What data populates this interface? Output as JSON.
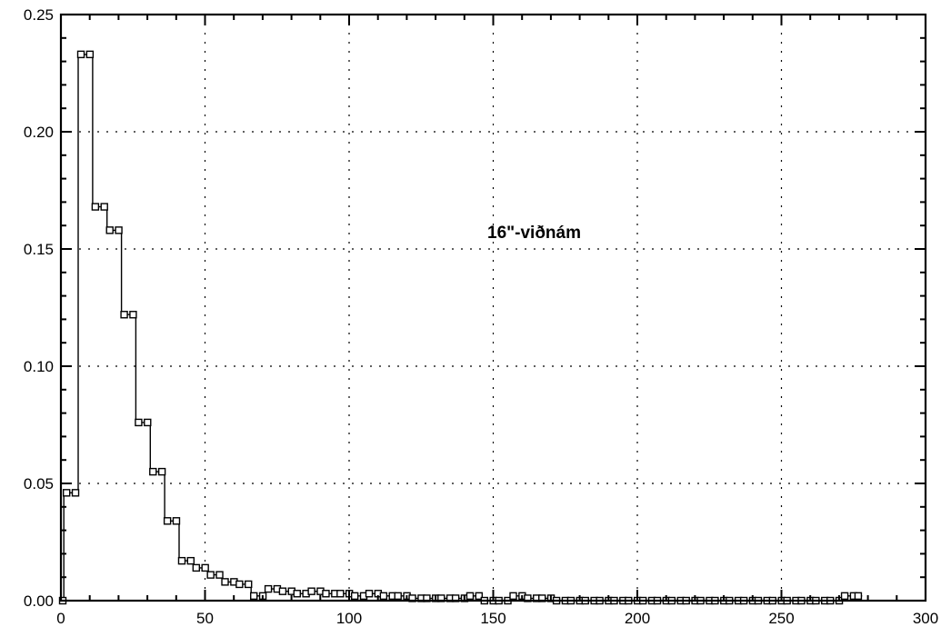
{
  "chart_data": {
    "type": "line",
    "style": "step histogram with square markers",
    "annotation": "16\"-viðnám",
    "xlim": [
      0,
      300
    ],
    "ylim": [
      0,
      0.25
    ],
    "x_ticks": [
      0,
      50,
      100,
      150,
      200,
      250,
      300
    ],
    "x_tick_labels": [
      "0",
      "50",
      "100",
      "150",
      "200",
      "250",
      "300"
    ],
    "y_ticks": [
      0,
      0.05,
      0.1,
      0.15,
      0.2,
      0.25
    ],
    "y_tick_labels": [
      "0.00",
      "0.05",
      "0.10",
      "0.15",
      "0.20",
      "0.25"
    ],
    "grid": true,
    "series": [
      {
        "x": [
          0,
          1,
          6,
          11,
          16,
          21,
          26,
          31,
          36,
          41,
          46,
          51,
          56,
          61,
          66,
          71,
          76,
          81,
          86,
          91,
          96,
          101,
          106,
          111,
          116,
          121,
          126,
          131,
          136,
          141,
          146,
          151,
          156,
          161,
          166,
          171,
          176,
          181,
          186,
          191,
          196,
          201,
          206,
          211,
          216,
          221,
          226,
          231,
          236,
          241,
          246,
          251,
          256,
          261,
          266,
          271,
          276
        ],
        "y": [
          0.0,
          0.046,
          0.233,
          0.168,
          0.158,
          0.122,
          0.076,
          0.055,
          0.034,
          0.017,
          0.014,
          0.011,
          0.008,
          0.007,
          0.002,
          0.005,
          0.004,
          0.003,
          0.004,
          0.003,
          0.003,
          0.002,
          0.003,
          0.002,
          0.002,
          0.001,
          0.001,
          0.001,
          0.001,
          0.002,
          0.0,
          0.0,
          0.002,
          0.001,
          0.001,
          0.0,
          0.0,
          0.0,
          0.0,
          0.0,
          0.0,
          0.0,
          0.0,
          0.0,
          0.0,
          0.0,
          0.0,
          0.0,
          0.0,
          0.0,
          0.0,
          0.0,
          0.0,
          0.0,
          0.0,
          0.002,
          0.002
        ]
      }
    ]
  }
}
